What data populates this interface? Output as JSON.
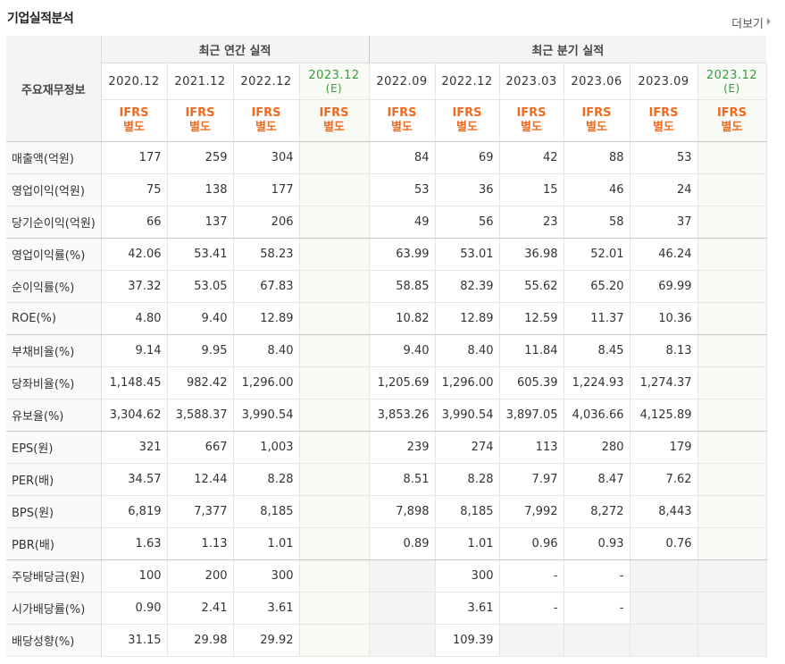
{
  "section": {
    "title": "기업실적분석",
    "more": "더보기"
  },
  "header": {
    "row_label": "주요재무정보",
    "annual_group": "최근 연간 실적",
    "quarter_group": "최근 분기 실적",
    "periods": [
      "2020.12",
      "2021.12",
      "2022.12",
      "2023.12",
      "2022.09",
      "2022.12",
      "2023.03",
      "2023.06",
      "2023.09",
      "2023.12"
    ],
    "estimate_mark": "(E)",
    "basis_line1": "IFRS",
    "basis_line2": "별도"
  },
  "rows": [
    {
      "label": "매출액(억원)",
      "values": [
        "177",
        "259",
        "304",
        "",
        "84",
        "69",
        "42",
        "88",
        "53",
        ""
      ]
    },
    {
      "label": "영업이익(억원)",
      "values": [
        "75",
        "138",
        "177",
        "",
        "53",
        "36",
        "15",
        "46",
        "24",
        ""
      ]
    },
    {
      "label": "당기순이익(억원)",
      "values": [
        "66",
        "137",
        "206",
        "",
        "49",
        "56",
        "23",
        "58",
        "37",
        ""
      ]
    },
    {
      "label": "영업이익률(%)",
      "values": [
        "42.06",
        "53.41",
        "58.23",
        "",
        "63.99",
        "53.01",
        "36.98",
        "52.01",
        "46.24",
        ""
      ]
    },
    {
      "label": "순이익률(%)",
      "values": [
        "37.32",
        "53.05",
        "67.83",
        "",
        "58.85",
        "82.39",
        "55.62",
        "65.20",
        "69.99",
        ""
      ]
    },
    {
      "label": "ROE(%)",
      "values": [
        "4.80",
        "9.40",
        "12.89",
        "",
        "10.82",
        "12.89",
        "12.59",
        "11.37",
        "10.36",
        ""
      ]
    },
    {
      "label": "부채비율(%)",
      "values": [
        "9.14",
        "9.95",
        "8.40",
        "",
        "9.40",
        "8.40",
        "11.84",
        "8.45",
        "8.13",
        ""
      ]
    },
    {
      "label": "당좌비율(%)",
      "values": [
        "1,148.45",
        "982.42",
        "1,296.00",
        "",
        "1,205.69",
        "1,296.00",
        "605.39",
        "1,224.93",
        "1,274.37",
        ""
      ]
    },
    {
      "label": "유보율(%)",
      "values": [
        "3,304.62",
        "3,588.37",
        "3,990.54",
        "",
        "3,853.26",
        "3,990.54",
        "3,897.05",
        "4,036.66",
        "4,125.89",
        ""
      ]
    },
    {
      "label": "EPS(원)",
      "values": [
        "321",
        "667",
        "1,003",
        "",
        "239",
        "274",
        "113",
        "280",
        "179",
        ""
      ]
    },
    {
      "label": "PER(배)",
      "values": [
        "34.57",
        "12.44",
        "8.28",
        "",
        "8.51",
        "8.28",
        "7.97",
        "8.47",
        "7.62",
        ""
      ]
    },
    {
      "label": "BPS(원)",
      "values": [
        "6,819",
        "7,377",
        "8,185",
        "",
        "7,898",
        "8,185",
        "7,992",
        "8,272",
        "8,443",
        ""
      ]
    },
    {
      "label": "PBR(배)",
      "values": [
        "1.63",
        "1.13",
        "1.01",
        "",
        "0.89",
        "1.01",
        "0.96",
        "0.93",
        "0.76",
        ""
      ]
    },
    {
      "label": "주당배당금(원)",
      "values": [
        "100",
        "200",
        "300",
        "",
        "",
        "300",
        "-",
        "-",
        "",
        ""
      ]
    },
    {
      "label": "시가배당률(%)",
      "values": [
        "0.90",
        "2.41",
        "3.61",
        "",
        "",
        "3.61",
        "-",
        "-",
        "",
        ""
      ]
    },
    {
      "label": "배당성향(%)",
      "values": [
        "31.15",
        "29.98",
        "29.92",
        "",
        "",
        "109.39",
        "",
        "",
        "",
        ""
      ]
    }
  ],
  "blank_cells": [
    [
      13,
      4
    ],
    [
      13,
      8
    ],
    [
      13,
      9
    ],
    [
      14,
      4
    ],
    [
      14,
      8
    ],
    [
      14,
      9
    ],
    [
      15,
      4
    ],
    [
      15,
      6
    ],
    [
      15,
      7
    ],
    [
      15,
      8
    ],
    [
      15,
      9
    ]
  ],
  "group_end_rows": [
    2,
    5,
    8,
    12
  ],
  "colors": {
    "basis": "#f06b1f",
    "estimate": "#3a9b3a"
  }
}
